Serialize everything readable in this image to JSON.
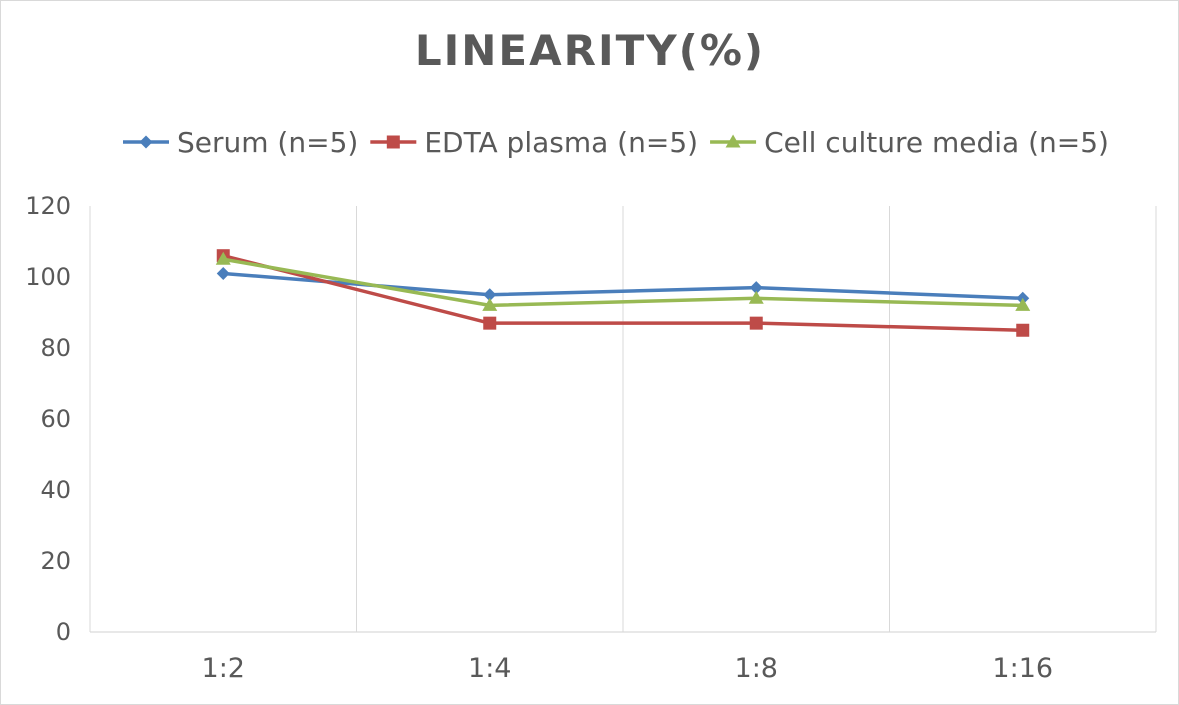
{
  "chart_data": {
    "type": "line",
    "title": "LINEARITY(%)",
    "xlabel": "",
    "ylabel": "",
    "categories": [
      "1:2",
      "1:4",
      "1:8",
      "1:16"
    ],
    "ylim": [
      0,
      120
    ],
    "yticks": [
      0,
      20,
      40,
      60,
      80,
      100,
      120
    ],
    "grid": "vertical",
    "legend_position": "top",
    "series": [
      {
        "name": "Serum (n=5)",
        "color": "#4a7ebb",
        "marker": "diamond",
        "values": [
          101,
          95,
          97,
          94
        ]
      },
      {
        "name": "EDTA plasma (n=5)",
        "color": "#be4b48",
        "marker": "square",
        "values": [
          106,
          87,
          87,
          85
        ]
      },
      {
        "name": "Cell culture media (n=5)",
        "color": "#98b954",
        "marker": "triangle",
        "values": [
          105,
          92,
          94,
          92
        ]
      }
    ]
  }
}
